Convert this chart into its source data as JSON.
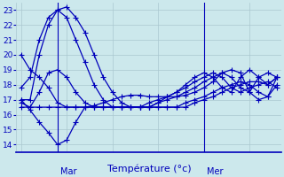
{
  "title": "Température (°c)",
  "background_color": "#cce8ec",
  "grid_color": "#aac8d0",
  "line_color": "#0000bb",
  "marker": "+",
  "markersize": 4,
  "linewidth": 0.9,
  "ylim": [
    13.5,
    23.5
  ],
  "yticks": [
    14,
    15,
    16,
    17,
    18,
    19,
    20,
    21,
    22,
    23
  ],
  "ytick_fontsize": 6.5,
  "day_label_fontsize": 7,
  "xlabel_fontsize": 8,
  "lines": [
    [
      20.0,
      19.0,
      18.5,
      17.8,
      16.8,
      16.5,
      16.5,
      16.5,
      16.6,
      16.8,
      17.0,
      17.2,
      17.3,
      17.3,
      17.2,
      17.2,
      17.2,
      17.2,
      17.3,
      17.5,
      17.8,
      18.2,
      18.8,
      19.0,
      18.8,
      17.5,
      17.0,
      17.2,
      18.5
    ],
    [
      17.0,
      16.3,
      15.5,
      14.8,
      14.0,
      14.3,
      15.5,
      16.5,
      16.5,
      16.5,
      16.5,
      16.5,
      16.5,
      16.5,
      16.5,
      16.8,
      17.2,
      17.5,
      18.0,
      18.5,
      18.8,
      18.5,
      17.8,
      17.5,
      18.5,
      19.0,
      18.5,
      18.0,
      18.5
    ],
    [
      17.8,
      18.5,
      21.0,
      22.5,
      23.0,
      23.2,
      22.5,
      21.5,
      20.0,
      18.5,
      17.5,
      16.8,
      16.5,
      16.5,
      16.5,
      16.5,
      16.5,
      16.5,
      16.5,
      16.8,
      17.0,
      17.2,
      17.5,
      17.8,
      18.0,
      18.2,
      18.2,
      18.0,
      18.5
    ],
    [
      17.0,
      17.0,
      20.0,
      22.0,
      23.0,
      22.5,
      21.0,
      19.5,
      18.0,
      17.0,
      16.5,
      16.5,
      16.5,
      16.5,
      16.5,
      16.5,
      16.5,
      16.5,
      16.8,
      17.0,
      17.2,
      17.5,
      17.8,
      18.0,
      18.2,
      18.0,
      17.5,
      17.2,
      18.0
    ],
    [
      16.5,
      16.5,
      17.5,
      18.8,
      19.0,
      18.5,
      17.5,
      16.8,
      16.5,
      16.5,
      16.5,
      16.5,
      16.5,
      16.5,
      16.5,
      16.8,
      17.0,
      17.2,
      17.5,
      17.8,
      18.2,
      18.5,
      18.8,
      18.5,
      17.8,
      17.5,
      18.5,
      18.8,
      18.5
    ],
    [
      16.8,
      16.5,
      16.5,
      16.5,
      16.5,
      16.5,
      16.5,
      16.5,
      16.5,
      16.5,
      16.5,
      16.5,
      16.5,
      16.5,
      16.8,
      17.0,
      17.2,
      17.5,
      17.8,
      18.2,
      18.5,
      18.8,
      18.5,
      17.8,
      17.5,
      17.8,
      18.0,
      18.2,
      17.8
    ]
  ],
  "num_points": 29,
  "mar_idx": 4,
  "mer_idx": 20,
  "xlim_left": -0.5,
  "xlim_right": 28.5
}
